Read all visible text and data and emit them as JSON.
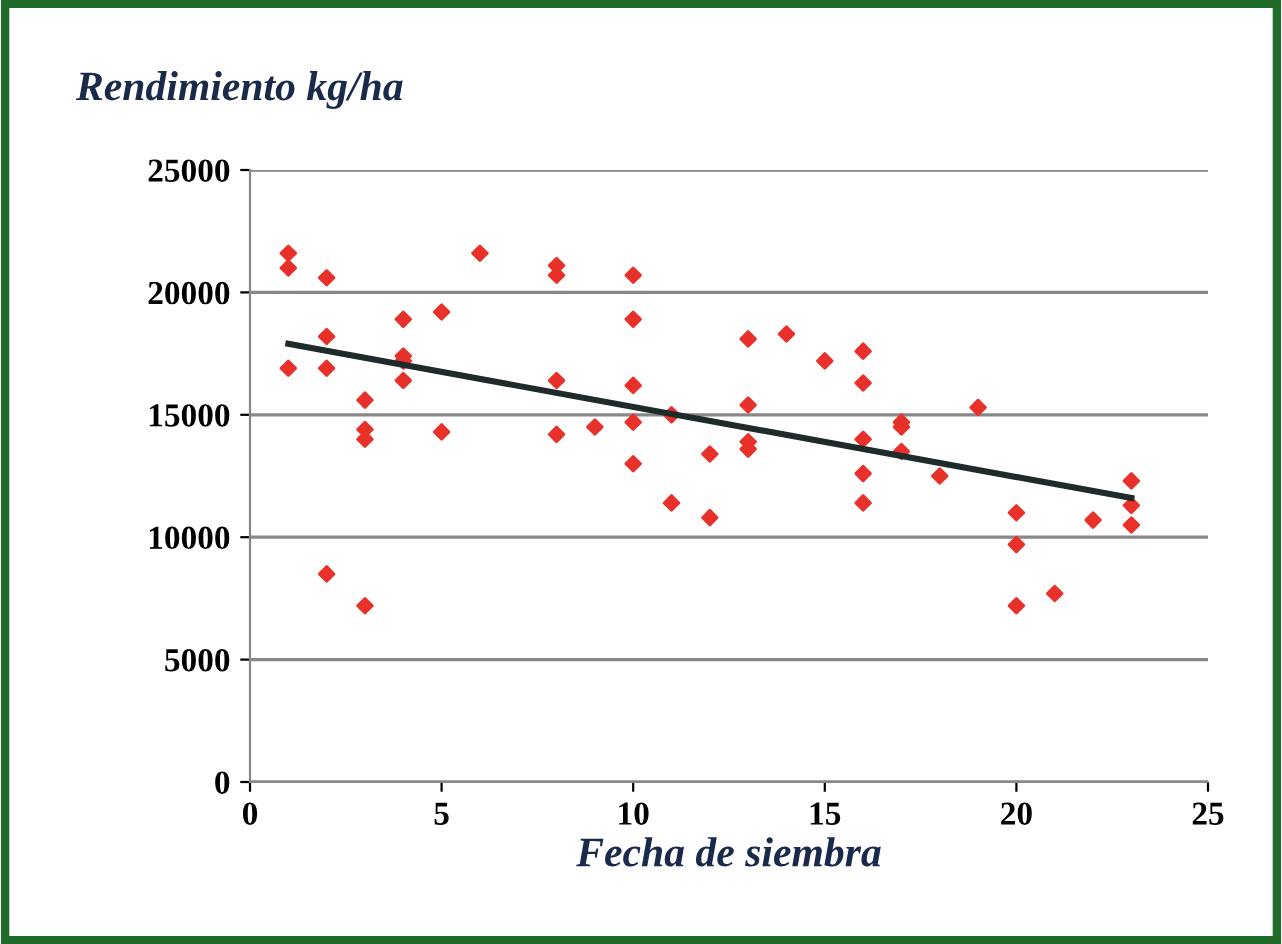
{
  "chart_data": {
    "type": "scatter",
    "ylabel": "Rendimiento kg/ha",
    "xlabel": "Fecha de siembra",
    "xlim": [
      0,
      25
    ],
    "xticks": [
      0,
      5,
      10,
      15,
      20,
      25
    ],
    "ylim": [
      0,
      25000
    ],
    "yticks": [
      0,
      5000,
      10000,
      15000,
      20000,
      25000
    ],
    "grid": "y",
    "marker": "diamond",
    "series": [
      {
        "color": "#e8312a",
        "x": [
          1,
          1,
          1,
          2,
          2,
          2,
          2,
          3,
          3,
          3,
          3,
          4,
          4,
          4,
          4,
          5,
          5,
          6,
          8,
          8,
          8,
          8,
          9,
          10,
          10,
          10,
          10,
          10,
          11,
          11,
          12,
          12,
          13,
          13,
          13,
          13,
          14,
          15,
          16,
          16,
          16,
          16,
          16,
          17,
          17,
          17,
          18,
          19,
          20,
          20,
          20,
          21,
          22,
          23,
          23,
          23
        ],
        "values": [
          21600,
          21000,
          16900,
          20600,
          18200,
          16900,
          8500,
          15600,
          14400,
          14000,
          7200,
          18900,
          17400,
          17200,
          16400,
          19200,
          14300,
          21600,
          21100,
          20700,
          16400,
          14200,
          14500,
          20700,
          18900,
          16200,
          14700,
          13000,
          15000,
          11400,
          13400,
          10800,
          18100,
          15400,
          13900,
          13600,
          18300,
          17200,
          17600,
          16300,
          14000,
          12600,
          11400,
          14700,
          14500,
          13500,
          12500,
          15300,
          11000,
          9700,
          7200,
          7700,
          10700,
          12300,
          11300,
          10500
        ]
      },
      {
        "type": "line",
        "color": "#1f2a2a",
        "x": [
          1,
          23
        ],
        "values": [
          17900,
          11600
        ],
        "marker": "none"
      }
    ]
  }
}
